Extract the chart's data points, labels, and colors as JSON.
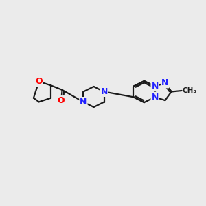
{
  "background_color": "#ebebeb",
  "bond_color": "#1a1a1a",
  "n_color": "#2020ff",
  "o_color": "#ff0000",
  "line_width": 1.6,
  "font_size": 9,
  "fig_width": 3.0,
  "fig_height": 3.0,
  "xlim": [
    0,
    10
  ],
  "ylim": [
    0,
    10
  ]
}
